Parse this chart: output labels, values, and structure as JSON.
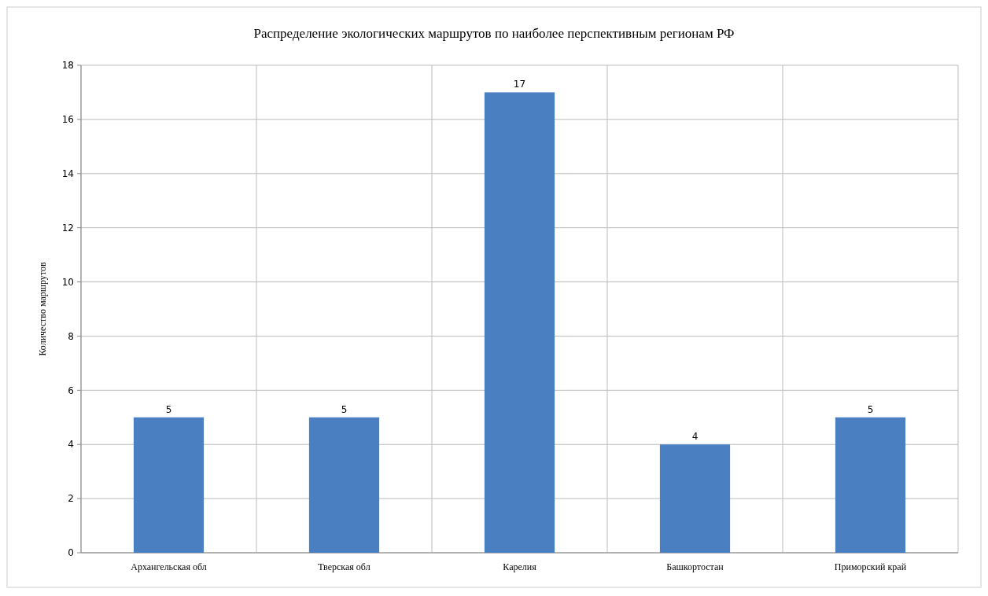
{
  "chart_data": {
    "type": "bar",
    "title": "Распределение экологических маршрутов по наиболее перспективным регионам РФ",
    "ylabel": "Количество маршрутов",
    "categories": [
      "Архангельская обл",
      "Тверская обл",
      "Карелия",
      "Башкортостан",
      "Приморский край"
    ],
    "values": [
      5,
      5,
      17,
      4,
      5
    ],
    "color": "#4a7fc1",
    "ylim": [
      0,
      18
    ],
    "yticks": [
      0,
      2,
      4,
      6,
      8,
      10,
      12,
      14,
      16,
      18
    ],
    "grid": true,
    "data_labels": true
  }
}
